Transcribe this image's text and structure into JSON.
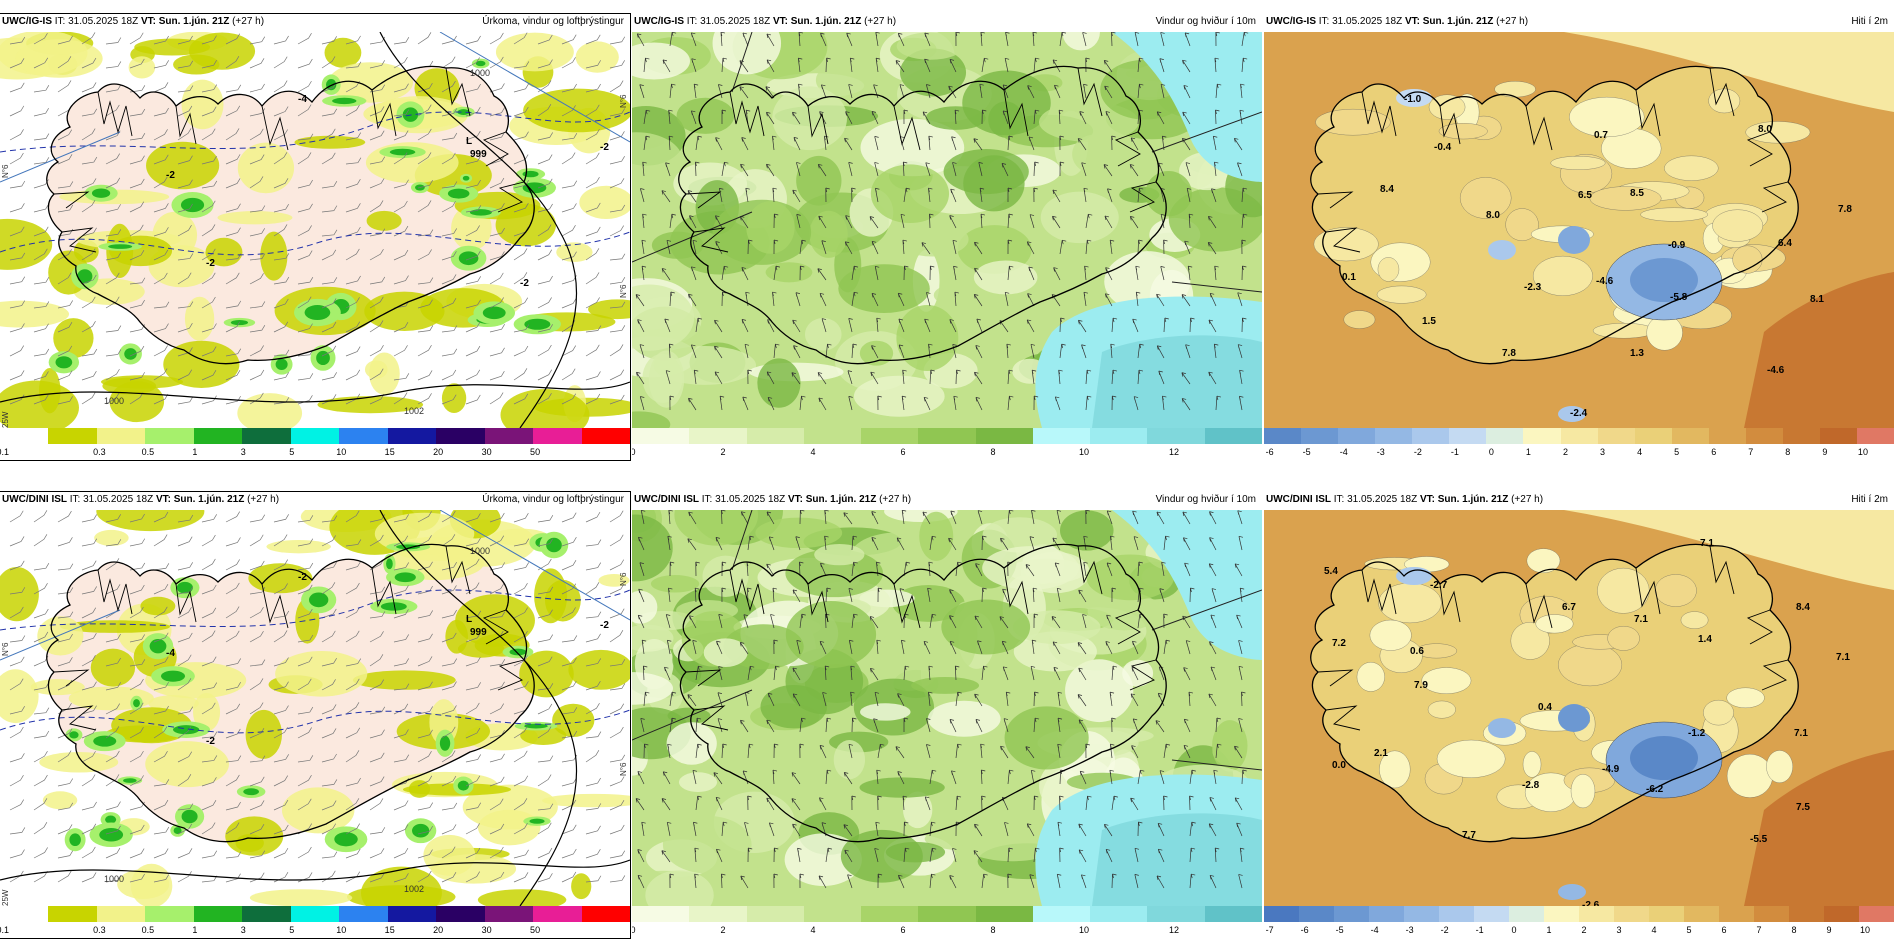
{
  "panels": [
    {
      "id": "r1c1",
      "model": "UWC/IG-IS",
      "it": " IT: 31.05.2025 18Z ",
      "vt_label": "VT:",
      "vt": " Sun. 1.jún. 21Z",
      "lead": " (+27 h)",
      "title": "Úrkoma, vindur og loftþrýstingur",
      "type": "precip",
      "scale": [
        "0.1",
        "0.3",
        "0.5",
        "1",
        "3",
        "5",
        "10",
        "15",
        "20",
        "30",
        "50"
      ],
      "colors": [
        "#ffffff",
        "#c8d400",
        "#f2f28a",
        "#a6f06c",
        "#22b422",
        "#0e6e3c",
        "#00f2e4",
        "#2c82f0",
        "#1418a0",
        "#2a0064",
        "#7a1478",
        "#e81e96",
        "#ff0000"
      ],
      "map_labels": [
        {
          "text": "999"
        },
        {
          "text": "L"
        },
        {
          "text": "1000"
        },
        {
          "text": "1002"
        },
        {
          "text": "1000"
        },
        {
          "text": "-2"
        },
        {
          "text": "-2"
        },
        {
          "text": "-2"
        },
        {
          "text": "-4"
        },
        {
          "text": "-2"
        }
      ],
      "lat_labels": [
        "N°6",
        "N°6",
        "N°6",
        "25W"
      ]
    },
    {
      "id": "r1c2",
      "model": "UWC/IG-IS",
      "it": " IT: 31.05.2025 18Z ",
      "vt_label": "VT:",
      "vt": " Sun. 1.jún. 21Z",
      "lead": " (+27 h)",
      "title": "Vindur og hviður í 10m",
      "type": "wind",
      "scale": [
        "0",
        "2",
        "4",
        "6",
        "8",
        "10",
        "12"
      ],
      "colors": [
        "#f6fbe4",
        "#e8f5c8",
        "#d6ecaa",
        "#c2e28c",
        "#a8d468",
        "#90c652",
        "#7ab843",
        "#b8f8fa",
        "#9cecf0",
        "#80d8dc",
        "#60c2c8"
      ]
    },
    {
      "id": "r1c3",
      "model": "UWC/IG-IS",
      "it": " IT: 31.05.2025 18Z ",
      "vt_label": "VT:",
      "vt": " Sun. 1.jún. 21Z",
      "lead": " (+27 h)",
      "title": "Hiti í 2m",
      "type": "temp",
      "scale": [
        "-6",
        "-5",
        "-4",
        "-3",
        "-2",
        "-1",
        "0",
        "1",
        "2",
        "3",
        "4",
        "5",
        "6",
        "7",
        "8",
        "9",
        "10"
      ],
      "colors": [
        "#5a88c8",
        "#6c98d2",
        "#80a8dc",
        "#94b8e4",
        "#aac8ec",
        "#c4daf2",
        "#dceee0",
        "#fbf6c0",
        "#f6e8a2",
        "#f0d88a",
        "#ead078",
        "#e2b860",
        "#daa24e",
        "#d28c3e",
        "#c87832",
        "#c0682a",
        "#e07864"
      ],
      "map_labels": [
        {
          "text": "-1.0"
        },
        {
          "text": "-0.4"
        },
        {
          "text": "0.7"
        },
        {
          "text": "8.0"
        },
        {
          "text": "8.4"
        },
        {
          "text": "6.5"
        },
        {
          "text": "8.5"
        },
        {
          "text": "8.0"
        },
        {
          "text": "7.8"
        },
        {
          "text": "-0.9"
        },
        {
          "text": "6.4"
        },
        {
          "text": "0.1"
        },
        {
          "text": "-2.3"
        },
        {
          "text": "-4.6"
        },
        {
          "text": "-5.8"
        },
        {
          "text": "8.1"
        },
        {
          "text": "1.5"
        },
        {
          "text": "7.8"
        },
        {
          "text": "1.3"
        },
        {
          "text": "-4.6"
        },
        {
          "text": "-2.4"
        }
      ]
    },
    {
      "id": "r2c1",
      "model": "UWC/DINI ISL",
      "it": " IT: 31.05.2025 18Z ",
      "vt_label": "VT:",
      "vt": " Sun. 1.jún. 21Z",
      "lead": " (+27 h)",
      "title": "Úrkoma, vindur og loftþrýstingur",
      "type": "precip",
      "scale": [
        "0.1",
        "0.3",
        "0.5",
        "1",
        "3",
        "5",
        "10",
        "15",
        "20",
        "30",
        "50"
      ],
      "colors": [
        "#ffffff",
        "#c8d400",
        "#f2f28a",
        "#a6f06c",
        "#22b422",
        "#0e6e3c",
        "#00f2e4",
        "#2c82f0",
        "#1418a0",
        "#2a0064",
        "#7a1478",
        "#e81e96",
        "#ff0000"
      ],
      "map_labels": [
        {
          "text": "999"
        },
        {
          "text": "L"
        },
        {
          "text": "1000"
        },
        {
          "text": "1002"
        },
        {
          "text": "1000"
        },
        {
          "text": "-2"
        },
        {
          "text": "-2"
        },
        {
          "text": "-4"
        },
        {
          "text": "-2"
        }
      ],
      "lat_labels": [
        "N°6",
        "N°6",
        "N°6",
        "25W"
      ]
    },
    {
      "id": "r2c2",
      "model": "UWC/DINI ISL",
      "it": " IT: 31.05.2025 18Z ",
      "vt_label": "VT:",
      "vt": " Sun. 1.jún. 21Z",
      "lead": " (+27 h)",
      "title": "Vindur og hviður í 10m",
      "type": "wind",
      "scale": [
        "0",
        "2",
        "4",
        "6",
        "8",
        "10",
        "12"
      ],
      "colors": [
        "#f6fbe4",
        "#e8f5c8",
        "#d6ecaa",
        "#c2e28c",
        "#a8d468",
        "#90c652",
        "#7ab843",
        "#b8f8fa",
        "#9cecf0",
        "#80d8dc",
        "#60c2c8"
      ]
    },
    {
      "id": "r2c3",
      "model": "UWC/DINI ISL",
      "it": " IT: 31.05.2025 18Z ",
      "vt_label": "VT:",
      "vt": " Sun. 1.jún. 21Z",
      "lead": " (+27 h)",
      "title": "Hiti í 2m",
      "type": "temp",
      "scale": [
        "-7",
        "-6",
        "-5",
        "-4",
        "-3",
        "-2",
        "-1",
        "0",
        "1",
        "2",
        "3",
        "4",
        "5",
        "6",
        "7",
        "8",
        "9",
        "10"
      ],
      "colors": [
        "#4a78c0",
        "#5a88c8",
        "#6c98d2",
        "#80a8dc",
        "#94b8e4",
        "#aac8ec",
        "#c4daf2",
        "#dceee0",
        "#fbf6c0",
        "#f6e8a2",
        "#f0d88a",
        "#ead078",
        "#e2b860",
        "#daa24e",
        "#d28c3e",
        "#c87832",
        "#c0682a",
        "#e07864"
      ],
      "map_labels": [
        {
          "text": "7.1"
        },
        {
          "text": "5.4"
        },
        {
          "text": "-2.7"
        },
        {
          "text": "6.7"
        },
        {
          "text": "7.1"
        },
        {
          "text": "8.4"
        },
        {
          "text": "7.2"
        },
        {
          "text": "0.6"
        },
        {
          "text": "1.4"
        },
        {
          "text": "7.1"
        },
        {
          "text": "7.9"
        },
        {
          "text": "0.4"
        },
        {
          "text": "-1.2"
        },
        {
          "text": "7.1"
        },
        {
          "text": "2.1"
        },
        {
          "text": "0.0"
        },
        {
          "text": "-4.9"
        },
        {
          "text": "-2.8"
        },
        {
          "text": "-6.2"
        },
        {
          "text": "7.5"
        },
        {
          "text": "7.7"
        },
        {
          "text": "-5.5"
        },
        {
          "text": "-2.6"
        }
      ]
    }
  ]
}
